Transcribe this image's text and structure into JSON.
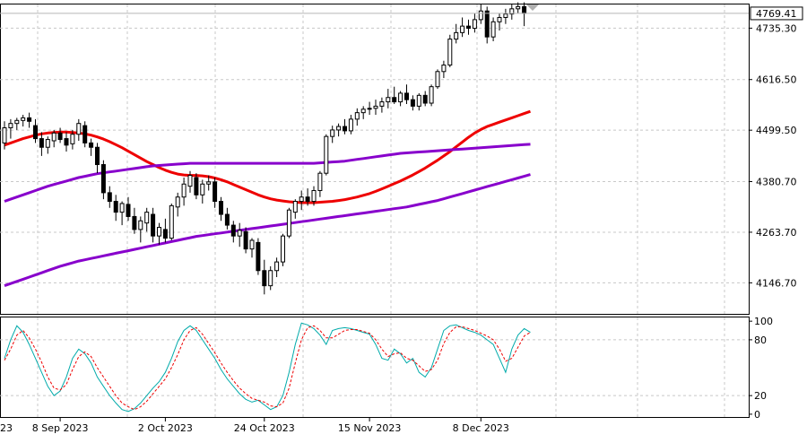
{
  "chart_data": [
    {
      "type": "candlestick",
      "panel": "price",
      "x_axis": {
        "tick_labels": [
          "8 Sep 2023",
          "2 Oct 2023",
          "24 Oct 2023",
          "15 Nov 2023",
          "8 Dec 2023"
        ],
        "tick_label_at_edge": "23"
      },
      "y_axis": {
        "tick_values": [
          4146.7,
          4263.7,
          4380.7,
          4499.5,
          4616.5,
          4735.3
        ],
        "tick_labels": [
          "4146.70",
          "4263.70",
          "4380.70",
          "4499.50",
          "4616.50",
          "4735.30"
        ],
        "range": [
          4075,
          4790
        ],
        "position": "right"
      },
      "current_price": {
        "value": 4769.41,
        "label": "4769.41"
      },
      "grid": true,
      "ohlc": [
        [
          4470,
          4520,
          4455,
          4505
        ],
        [
          4505,
          4525,
          4480,
          4515
        ],
        [
          4515,
          4528,
          4500,
          4522
        ],
        [
          4522,
          4535,
          4508,
          4528
        ],
        [
          4528,
          4540,
          4505,
          4520
        ],
        [
          4510,
          4525,
          4470,
          4480
        ],
        [
          4480,
          4495,
          4440,
          4460
        ],
        [
          4460,
          4485,
          4445,
          4478
        ],
        [
          4475,
          4500,
          4460,
          4493
        ],
        [
          4493,
          4505,
          4470,
          4478
        ],
        [
          4480,
          4495,
          4450,
          4465
        ],
        [
          4468,
          4500,
          4455,
          4490
        ],
        [
          4490,
          4525,
          4475,
          4515
        ],
        [
          4510,
          4520,
          4460,
          4470
        ],
        [
          4470,
          4480,
          4440,
          4460
        ],
        [
          4460,
          4470,
          4400,
          4420
        ],
        [
          4420,
          4430,
          4340,
          4355
        ],
        [
          4355,
          4370,
          4320,
          4335
        ],
        [
          4335,
          4350,
          4290,
          4310
        ],
        [
          4310,
          4335,
          4280,
          4330
        ],
        [
          4328,
          4345,
          4290,
          4300
        ],
        [
          4300,
          4320,
          4260,
          4270
        ],
        [
          4270,
          4300,
          4240,
          4290
        ],
        [
          4285,
          4320,
          4265,
          4310
        ],
        [
          4305,
          4320,
          4240,
          4255
        ],
        [
          4255,
          4285,
          4235,
          4275
        ],
        [
          4270,
          4295,
          4240,
          4250
        ],
        [
          4250,
          4330,
          4245,
          4325
        ],
        [
          4322,
          4355,
          4300,
          4345
        ],
        [
          4345,
          4390,
          4325,
          4375
        ],
        [
          4370,
          4405,
          4355,
          4395
        ],
        [
          4390,
          4400,
          4340,
          4350
        ],
        [
          4350,
          4385,
          4330,
          4375
        ],
        [
          4375,
          4395,
          4360,
          4380
        ],
        [
          4380,
          4390,
          4320,
          4335
        ],
        [
          4335,
          4345,
          4290,
          4305
        ],
        [
          4305,
          4320,
          4270,
          4280
        ],
        [
          4280,
          4290,
          4240,
          4255
        ],
        [
          4255,
          4285,
          4230,
          4268
        ],
        [
          4265,
          4275,
          4215,
          4225
        ],
        [
          4225,
          4250,
          4205,
          4245
        ],
        [
          4240,
          4250,
          4165,
          4175
        ],
        [
          4175,
          4200,
          4120,
          4140
        ],
        [
          4140,
          4185,
          4130,
          4175
        ],
        [
          4175,
          4205,
          4160,
          4195
        ],
        [
          4195,
          4260,
          4185,
          4255
        ],
        [
          4255,
          4320,
          4250,
          4315
        ],
        [
          4310,
          4340,
          4295,
          4335
        ],
        [
          4335,
          4360,
          4315,
          4345
        ],
        [
          4345,
          4365,
          4325,
          4335
        ],
        [
          4335,
          4370,
          4325,
          4360
        ],
        [
          4360,
          4405,
          4345,
          4400
        ],
        [
          4400,
          4490,
          4395,
          4485
        ],
        [
          4485,
          4510,
          4470,
          4500
        ],
        [
          4500,
          4515,
          4485,
          4508
        ],
        [
          4508,
          4525,
          4490,
          4498
        ],
        [
          4498,
          4535,
          4490,
          4525
        ],
        [
          4525,
          4550,
          4510,
          4540
        ],
        [
          4540,
          4555,
          4525,
          4548
        ],
        [
          4548,
          4565,
          4535,
          4550
        ],
        [
          4550,
          4570,
          4535,
          4555
        ],
        [
          4555,
          4575,
          4540,
          4565
        ],
        [
          4565,
          4595,
          4550,
          4575
        ],
        [
          4575,
          4600,
          4560,
          4565
        ],
        [
          4565,
          4590,
          4555,
          4585
        ],
        [
          4585,
          4605,
          4560,
          4570
        ],
        [
          4570,
          4580,
          4545,
          4555
        ],
        [
          4555,
          4585,
          4545,
          4580
        ],
        [
          4580,
          4590,
          4555,
          4562
        ],
        [
          4562,
          4605,
          4555,
          4600
        ],
        [
          4600,
          4640,
          4595,
          4635
        ],
        [
          4635,
          4660,
          4620,
          4650
        ],
        [
          4650,
          4720,
          4645,
          4710
        ],
        [
          4710,
          4745,
          4700,
          4725
        ],
        [
          4725,
          4760,
          4715,
          4740
        ],
        [
          4740,
          4755,
          4720,
          4735
        ],
        [
          4735,
          4770,
          4725,
          4755
        ],
        [
          4755,
          4790,
          4745,
          4775
        ],
        [
          4775,
          4785,
          4700,
          4715
        ],
        [
          4715,
          4760,
          4705,
          4750
        ],
        [
          4750,
          4770,
          4730,
          4760
        ],
        [
          4760,
          4780,
          4745,
          4768
        ],
        [
          4768,
          4790,
          4755,
          4780
        ],
        [
          4780,
          4795,
          4770,
          4785
        ],
        [
          4785,
          4795,
          4740,
          4769.41
        ]
      ],
      "moving_averages": [
        {
          "color": "#ee0000",
          "values": [
            4465,
            4470,
            4475,
            4480,
            4484,
            4488,
            4491,
            4493,
            4494,
            4495,
            4495,
            4494,
            4493,
            4491,
            4488,
            4484,
            4479,
            4473,
            4466,
            4459,
            4451,
            4443,
            4435,
            4427,
            4420,
            4413,
            4407,
            4402,
            4398,
            4396,
            4395,
            4395,
            4394,
            4392,
            4389,
            4385,
            4380,
            4374,
            4368,
            4362,
            4356,
            4350,
            4345,
            4341,
            4338,
            4336,
            4334,
            4333,
            4332,
            4332,
            4332,
            4333,
            4334,
            4335,
            4337,
            4339,
            4342,
            4345,
            4349,
            4353,
            4358,
            4364,
            4370,
            4376,
            4382,
            4389,
            4396,
            4404,
            4412,
            4421,
            4430,
            4440,
            4450,
            4461,
            4472,
            4483,
            4493,
            4501,
            4508,
            4513,
            4518,
            4523,
            4528,
            4533,
            4538,
            4543
          ]
        },
        {
          "color": "#8800cc",
          "values": [
            4335,
            4340,
            4345,
            4350,
            4355,
            4360,
            4365,
            4370,
            4374,
            4378,
            4382,
            4386,
            4390,
            4393,
            4396,
            4399,
            4401,
            4403,
            4405,
            4407,
            4409,
            4411,
            4413,
            4415,
            4417,
            4418,
            4419,
            4420,
            4421,
            4422,
            4423,
            4423,
            4423,
            4423,
            4423,
            4423,
            4423,
            4423,
            4423,
            4423,
            4423,
            4423,
            4423,
            4423,
            4423,
            4423,
            4423,
            4423,
            4423,
            4423,
            4423,
            4424,
            4425,
            4426,
            4427,
            4428,
            4430,
            4432,
            4434,
            4436,
            4438,
            4440,
            4442,
            4444,
            4446,
            4447,
            4448,
            4449,
            4450,
            4451,
            4452,
            4453,
            4454,
            4455,
            4456,
            4457,
            4458,
            4459,
            4460,
            4461,
            4462,
            4463,
            4464,
            4465,
            4466,
            4467
          ]
        },
        {
          "color": "#8800cc",
          "values": [
            4140,
            4145,
            4150,
            4155,
            4160,
            4165,
            4170,
            4175,
            4180,
            4185,
            4189,
            4193,
            4197,
            4200,
            4203,
            4206,
            4209,
            4212,
            4215,
            4218,
            4221,
            4224,
            4227,
            4230,
            4233,
            4236,
            4239,
            4242,
            4245,
            4248,
            4251,
            4254,
            4256,
            4258,
            4260,
            4262,
            4264,
            4266,
            4268,
            4270,
            4272,
            4274,
            4276,
            4278,
            4280,
            4282,
            4284,
            4286,
            4288,
            4290,
            4292,
            4294,
            4296,
            4298,
            4300,
            4302,
            4304,
            4306,
            4308,
            4310,
            4312,
            4314,
            4316,
            4318,
            4320,
            4322,
            4325,
            4328,
            4331,
            4334,
            4337,
            4341,
            4345,
            4349,
            4353,
            4357,
            4361,
            4365,
            4369,
            4373,
            4377,
            4381,
            4385,
            4389,
            4393,
            4397
          ]
        }
      ]
    },
    {
      "type": "line",
      "panel": "oscillator",
      "y_axis": {
        "tick_values": [
          100,
          80,
          20,
          0
        ],
        "tick_labels": [
          "100",
          "80",
          "20",
          "0"
        ],
        "range": [
          -3,
          104
        ],
        "position": "right"
      },
      "series": [
        {
          "color": "#00aaaa",
          "style": "solid",
          "values": [
            60,
            80,
            95,
            88,
            75,
            60,
            45,
            30,
            20,
            25,
            40,
            60,
            70,
            65,
            55,
            40,
            30,
            20,
            12,
            5,
            3,
            6,
            12,
            20,
            28,
            35,
            45,
            60,
            78,
            90,
            95,
            90,
            80,
            70,
            60,
            48,
            38,
            30,
            22,
            16,
            13,
            15,
            10,
            5,
            8,
            20,
            45,
            75,
            98,
            96,
            92,
            85,
            75,
            90,
            92,
            93,
            92,
            90,
            88,
            86,
            75,
            60,
            58,
            70,
            65,
            55,
            60,
            45,
            40,
            50,
            70,
            90,
            95,
            96,
            93,
            90,
            88,
            85,
            80,
            75,
            60,
            45,
            70,
            85,
            92,
            88
          ]
        },
        {
          "color": "#ee0000",
          "style": "dashed",
          "values": [
            58,
            70,
            85,
            90,
            82,
            70,
            56,
            40,
            28,
            26,
            32,
            48,
            62,
            67,
            62,
            50,
            40,
            30,
            20,
            12,
            8,
            5,
            8,
            14,
            22,
            30,
            38,
            50,
            64,
            80,
            90,
            93,
            86,
            76,
            66,
            55,
            45,
            36,
            28,
            22,
            17,
            15,
            13,
            9,
            8,
            12,
            28,
            55,
            80,
            93,
            95,
            90,
            82,
            82,
            86,
            90,
            91,
            91,
            89,
            87,
            80,
            70,
            62,
            65,
            66,
            60,
            58,
            52,
            46,
            48,
            58,
            76,
            88,
            94,
            94,
            92,
            90,
            87,
            84,
            80,
            70,
            57,
            60,
            72,
            84,
            88
          ]
        }
      ]
    }
  ]
}
